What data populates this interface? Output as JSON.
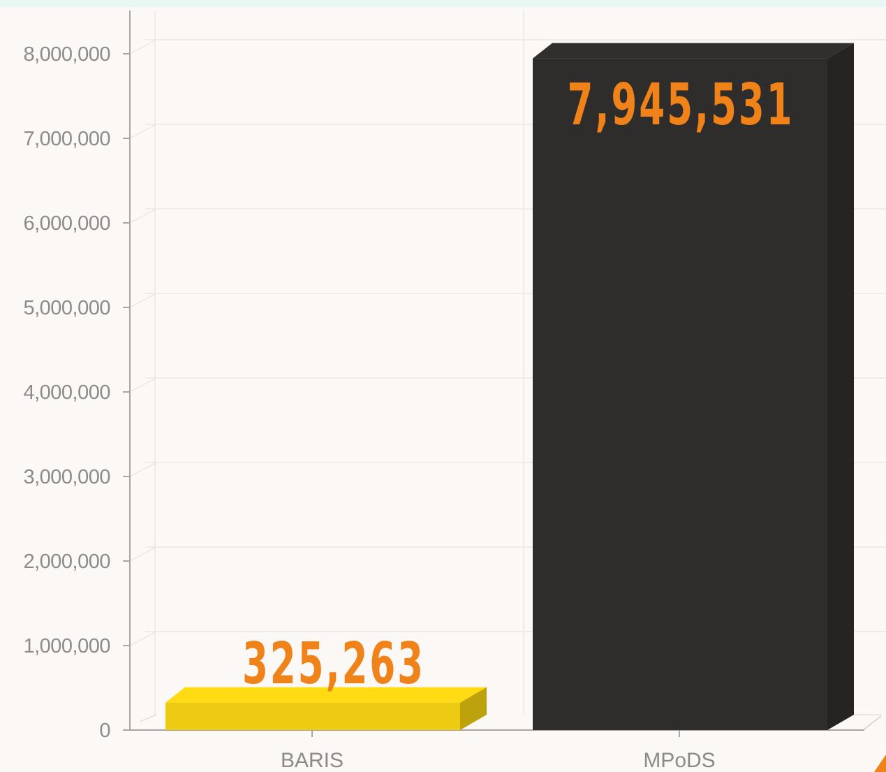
{
  "chart_data": {
    "type": "bar",
    "style": "3d",
    "categories": [
      "BARIS",
      "MPoDS"
    ],
    "values": [
      325263,
      7945531
    ],
    "data_labels": [
      "325,263",
      "7,945,531"
    ],
    "bar_colors": [
      "#eccb12",
      "#2f2d2b"
    ],
    "data_label_color": "#ef8219",
    "ylim": [
      0,
      8000000
    ],
    "y_ticks": [
      0,
      1000000,
      2000000,
      3000000,
      4000000,
      5000000,
      6000000,
      7000000,
      8000000
    ],
    "y_tick_labels": [
      "0",
      "1,000,000",
      "2,000,000",
      "3,000,000",
      "4,000,000",
      "5,000,000",
      "6,000,000",
      "7,000,000",
      "8,000,000"
    ],
    "grid": true,
    "legend": "none"
  }
}
